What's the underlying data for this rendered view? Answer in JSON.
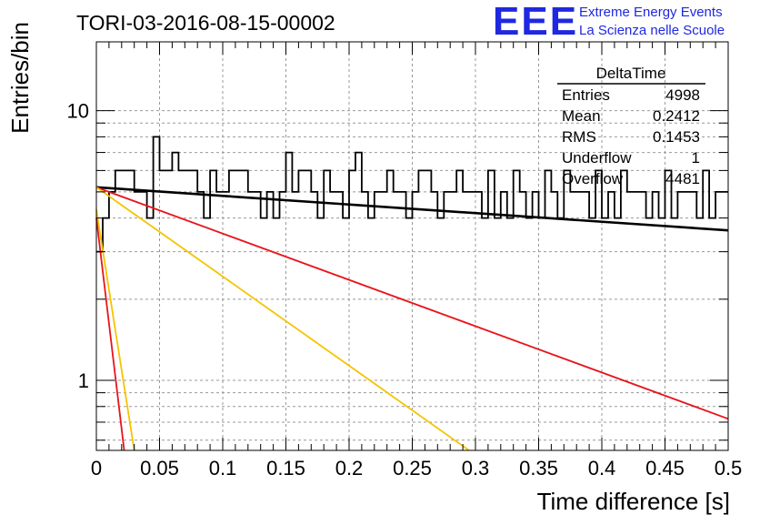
{
  "colors": {
    "histogram": "#000000",
    "fit_black": "#000000",
    "fit_red": "#e8151a",
    "fit_yellow": "#f5c400",
    "logo": "#1f28e0",
    "grid": "#999999"
  },
  "chart_data": {
    "type": "histogram",
    "title": "TORI-03-2016-08-15-00002",
    "xlabel": "Time difference [s]",
    "ylabel": "Entries/bin",
    "xlim": [
      0,
      0.5
    ],
    "ylim": [
      0.55,
      18
    ],
    "yscale": "log",
    "grid": true,
    "x_ticks": [
      0,
      0.05,
      0.1,
      0.15,
      0.2,
      0.25,
      0.3,
      0.35,
      0.4,
      0.45,
      0.5
    ],
    "x_tick_labels": [
      "0",
      "0.05",
      "0.1",
      "0.15",
      "0.2",
      "0.25",
      "0.3",
      "0.35",
      "0.4",
      "0.45",
      "0.5"
    ],
    "y_ticks": [
      1,
      10
    ],
    "y_tick_labels": [
      "1",
      "10"
    ],
    "bin_width": 0.005,
    "histogram_values": [
      3,
      4,
      5,
      6,
      6,
      6,
      5,
      5,
      4,
      8,
      6,
      6,
      7,
      6,
      6,
      6,
      5,
      4,
      6,
      5,
      5,
      6,
      6,
      6,
      5,
      5,
      4,
      5,
      4,
      5,
      7,
      5,
      6,
      6,
      5,
      4,
      6,
      5,
      5,
      4,
      6,
      7,
      5,
      4,
      5,
      5,
      6,
      5,
      5,
      4,
      5,
      6,
      6,
      5,
      4,
      5,
      5,
      6,
      5,
      5,
      5,
      4,
      6,
      4,
      5,
      4,
      6,
      5,
      4,
      5,
      4,
      6,
      5,
      4,
      6,
      5,
      5,
      5,
      4,
      6,
      4,
      5,
      4,
      6,
      5,
      5,
      5,
      4,
      5,
      4,
      6,
      4,
      5,
      5,
      5,
      4,
      6,
      4,
      5,
      5
    ],
    "fit_lines": [
      {
        "color": "black",
        "x": [
          0.0,
          0.5
        ],
        "y": [
          5.2,
          3.6
        ]
      },
      {
        "color": "red",
        "x": [
          0.0,
          0.5
        ],
        "y": [
          5.2,
          0.72
        ]
      },
      {
        "color": "yellow",
        "x": [
          0.0,
          0.295
        ],
        "y": [
          5.2,
          0.55
        ]
      },
      {
        "color": "yellow",
        "x": [
          0.0,
          0.03
        ],
        "y": [
          4.3,
          0.55
        ]
      },
      {
        "color": "red",
        "x": [
          0.0,
          0.022
        ],
        "y": [
          4.0,
          0.55
        ]
      }
    ],
    "stats_box": {
      "title": "DeltaTime",
      "rows": [
        {
          "label": "Entries",
          "value": "4998"
        },
        {
          "label": "Mean",
          "value": "0.2412"
        },
        {
          "label": "RMS",
          "value": "0.1453"
        },
        {
          "label": "Underflow",
          "value": "1"
        },
        {
          "label": "Overflow",
          "value": "4481"
        }
      ]
    },
    "logo": {
      "mark": "EEE",
      "line1": "Extreme Energy Events",
      "line2": "La Scienza nelle Scuole"
    }
  }
}
